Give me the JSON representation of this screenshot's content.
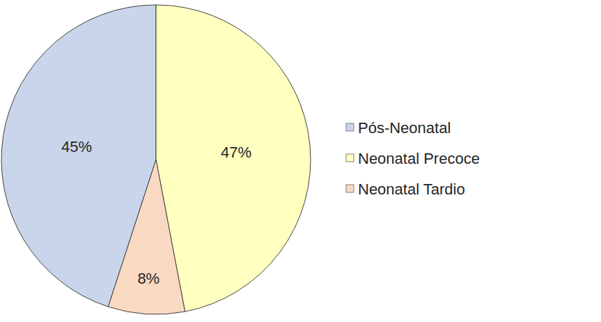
{
  "chart_data": {
    "type": "pie",
    "categories": [
      "Pós-Neonatal",
      "Neonatal Precoce",
      "Neonatal Tardio"
    ],
    "values": [
      45,
      47,
      8
    ],
    "value_labels": [
      "45%",
      "47%",
      "8%"
    ],
    "colors": [
      "#c9d5ea",
      "#ffffc0",
      "#fad9c3"
    ],
    "data_labels": true,
    "legend": "right"
  }
}
